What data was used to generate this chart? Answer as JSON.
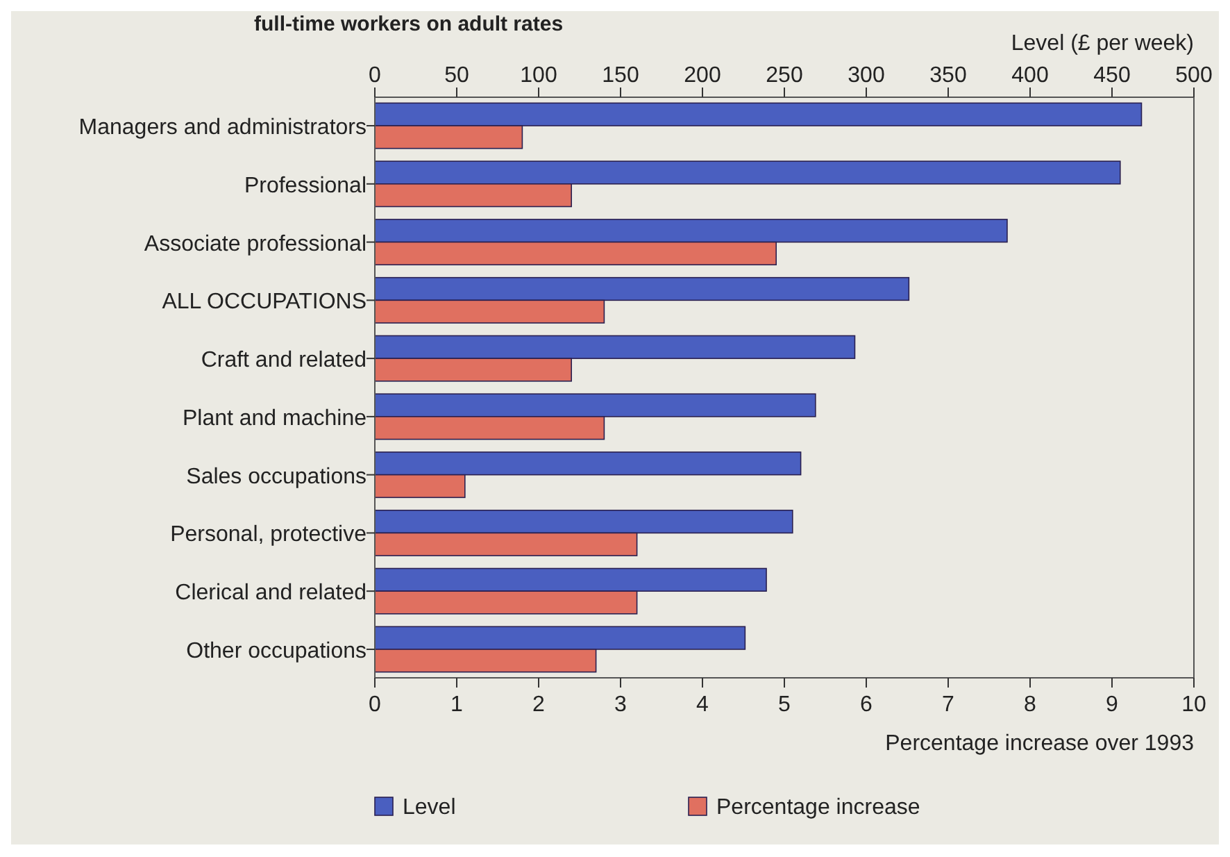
{
  "chart_data": {
    "type": "bar",
    "orientation": "horizontal",
    "title": "full-time workers on adult rates",
    "categories": [
      "Managers and administrators",
      "Professional",
      "Associate professional",
      "ALL OCCUPATIONS",
      "Craft and related",
      "Plant and machine",
      "Sales occupations",
      "Personal, protective",
      "Clerical and related",
      "Other occupations"
    ],
    "series": [
      {
        "name": "Level",
        "color": "#4a5fc0",
        "axis": "x2",
        "values": [
          468,
          455,
          386,
          326,
          293,
          269,
          260,
          255,
          239,
          226
        ]
      },
      {
        "name": "Percentage increase",
        "color": "#e07060",
        "values": [
          1.8,
          2.4,
          4.9,
          2.8,
          2.4,
          2.8,
          1.1,
          3.2,
          3.2,
          2.7
        ]
      }
    ],
    "xlim": [
      0,
      10
    ],
    "xticks": [
      0,
      1,
      2,
      3,
      4,
      5,
      6,
      7,
      8,
      9,
      10
    ],
    "xlabel": "Percentage increase over 1993",
    "x2lim": [
      0,
      500
    ],
    "x2ticks": [
      0,
      50,
      100,
      150,
      200,
      250,
      300,
      350,
      400,
      450,
      500
    ],
    "x2label": "Level (£ per week)",
    "legend": "bottom",
    "grid": false
  }
}
